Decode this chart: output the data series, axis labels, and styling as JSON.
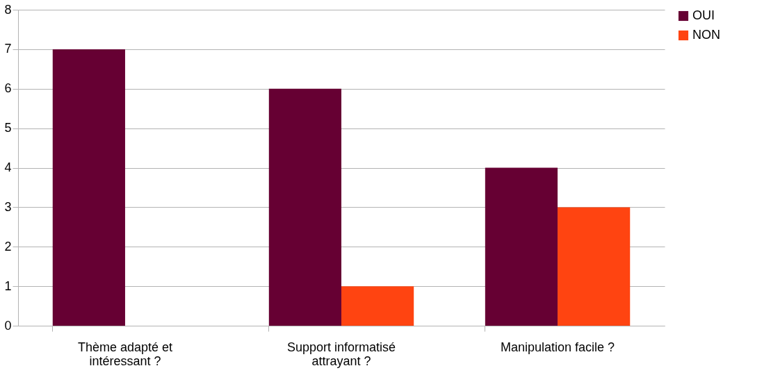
{
  "chart_data": {
    "type": "bar",
    "categories": [
      "Thème adapté et intéressant ?",
      "Support informatisé attrayant ?",
      "Manipulation facile ?"
    ],
    "series": [
      {
        "name": "OUI",
        "color": "#660033",
        "values": [
          7,
          6,
          4
        ]
      },
      {
        "name": "NON",
        "color": "#ff4411",
        "values": [
          0,
          1,
          3
        ]
      }
    ],
    "ylim": [
      0,
      8
    ],
    "yticks": [
      0,
      1,
      2,
      3,
      4,
      5,
      6,
      7,
      8
    ],
    "grid": "y",
    "legend": "right"
  }
}
